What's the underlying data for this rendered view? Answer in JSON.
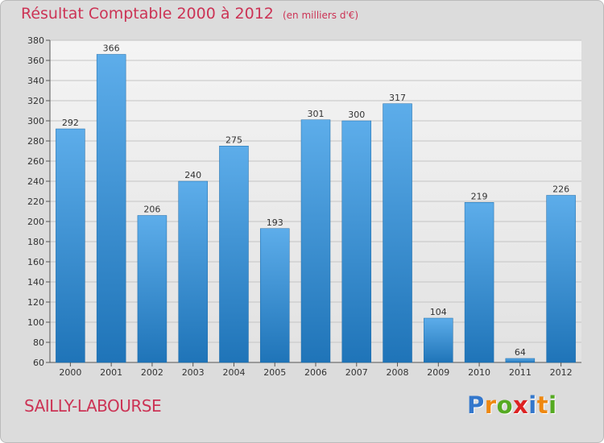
{
  "chart_data": {
    "type": "bar",
    "title": "Résultat Comptable 2000 à 2012",
    "unit": "(en milliers d'€)",
    "categories": [
      "2000",
      "2001",
      "2002",
      "2003",
      "2004",
      "2005",
      "2006",
      "2007",
      "2008",
      "2009",
      "2010",
      "2011",
      "2012"
    ],
    "values": [
      292,
      366,
      206,
      240,
      275,
      193,
      301,
      300,
      317,
      104,
      219,
      64,
      226
    ],
    "ylim": [
      60,
      380
    ],
    "ytick_step": 20,
    "grid": true,
    "xlabel": "",
    "ylabel": ""
  },
  "footer": {
    "town": "SAILLY-LABOURSE",
    "logo_letters": [
      "P",
      "r",
      "o",
      "x",
      "i",
      "t",
      "i"
    ],
    "logo_colors": [
      "#3377cc",
      "#ee8811",
      "#55aa22",
      "#dd2222",
      "#3377cc",
      "#ee8811",
      "#55aa22"
    ]
  },
  "colors": {
    "bar_light": "#5dadea",
    "bar_dark": "#1f74b8",
    "grid": "#c4c4c4",
    "title": "#cc3355"
  }
}
